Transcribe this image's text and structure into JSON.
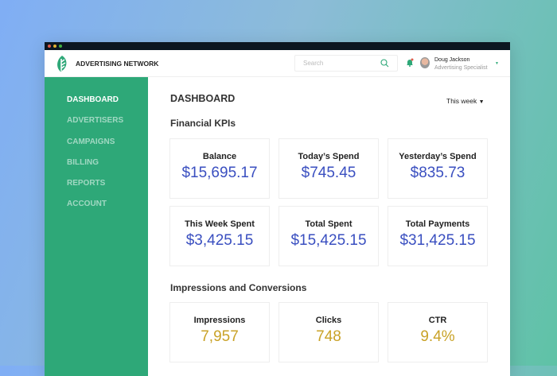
{
  "header": {
    "brand": "ADVERTISING NETWORK",
    "search_placeholder": "Search",
    "user_name": "Doug Jackson",
    "user_role": "Advertising Specialist"
  },
  "sidebar": {
    "items": [
      {
        "label": "DASHBOARD",
        "active": true
      },
      {
        "label": "ADVERTISERS"
      },
      {
        "label": "CAMPAIGNS"
      },
      {
        "label": "BILLING"
      },
      {
        "label": "REPORTS"
      },
      {
        "label": "ACCOUNT"
      }
    ]
  },
  "main": {
    "title": "DASHBOARD",
    "period": "This week",
    "financial": {
      "title": "Financial KPIs",
      "cards": [
        {
          "label": "Balance",
          "value": "$15,695.17"
        },
        {
          "label": "Today’s Spend",
          "value": "$745.45"
        },
        {
          "label": "Yesterday’s Spend",
          "value": "$835.73"
        },
        {
          "label": "This Week Spent",
          "value": "$3,425.15"
        },
        {
          "label": "Total Spent",
          "value": "$15,425.15"
        },
        {
          "label": "Total Payments",
          "value": "$31,425.15"
        }
      ]
    },
    "impressions": {
      "title": "Impressions and Conversions",
      "cards": [
        {
          "label": "Impressions",
          "value": "7,957"
        },
        {
          "label": "Clicks",
          "value": "748"
        },
        {
          "label": "CTR",
          "value": "9.4%"
        }
      ]
    }
  },
  "colors": {
    "accent": "#2ea878",
    "money": "#3a4fc0",
    "metric": "#c9a227"
  }
}
